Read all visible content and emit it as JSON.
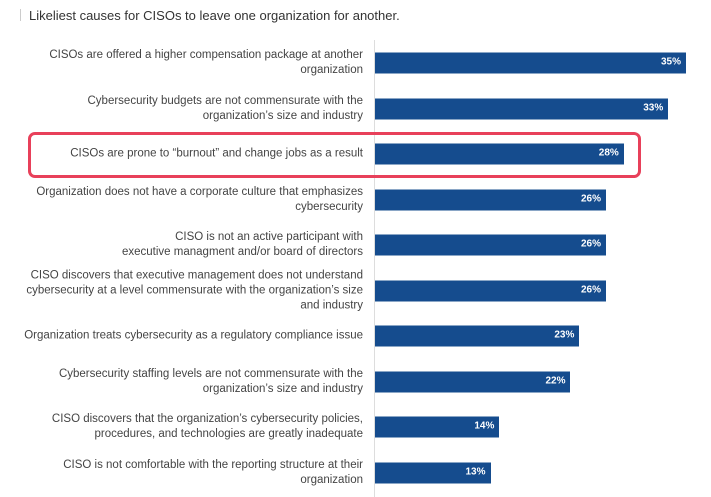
{
  "chart_data": {
    "type": "bar",
    "orientation": "horizontal",
    "title": "Likeliest causes for CISOs to leave one organization for another.",
    "xlabel": "",
    "ylabel": "",
    "xlim": [
      0,
      35
    ],
    "grid": false,
    "highlighted_index": 2,
    "bar_color": "#154c8e",
    "highlight_color": "#e8405a",
    "categories": [
      "CISOs are offered a higher compensation package at another organization",
      "Cybersecurity budgets are not commensurate with the organization’s size and industry",
      "CISOs are prone to “burnout” and change jobs as a result",
      "Organization does not have a corporate culture that emphasizes cybersecurity",
      "CISO is not an active participant with executive managment and/or board of directors",
      "CISO discovers that executive management does not understand cybersecurity at a level commensurate with the organization’s size and industry",
      "Organization treats cybersecurity as a regulatory compliance issue",
      "Cybersecurity staffing levels are not commensurate with the organization’s size and industry",
      "CISO discovers that the organization’s cybersecurity policies, procedures, and technologies are greatly inadequate",
      "CISO is not comfortable with the reporting structure at their organization"
    ],
    "values": [
      35,
      33,
      28,
      26,
      26,
      26,
      23,
      22,
      14,
      13
    ],
    "value_labels": [
      "35%",
      "33%",
      "28%",
      "26%",
      "26%",
      "26%",
      "23%",
      "22%",
      "14%",
      "13%"
    ]
  }
}
